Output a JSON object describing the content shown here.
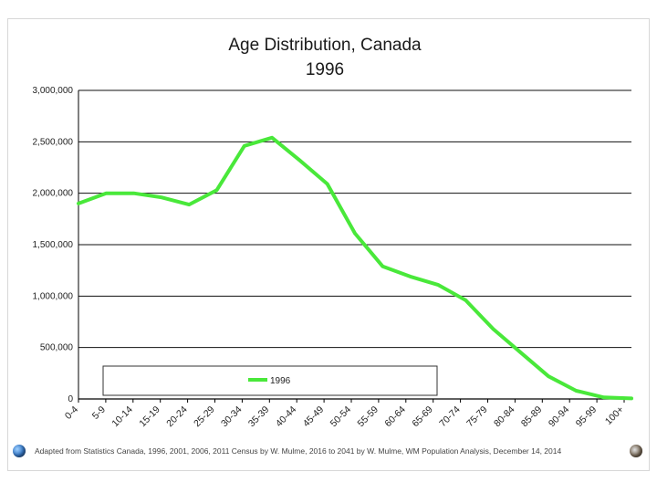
{
  "chart_data": {
    "type": "line",
    "title": [
      "Age Distribution, Canada",
      "1996"
    ],
    "categories": [
      "0-4",
      "5-9",
      "10-14",
      "15-19",
      "20-24",
      "25-29",
      "30-34",
      "35-39",
      "40-44",
      "45-49",
      "50-54",
      "55-59",
      "60-64",
      "65-69",
      "70-74",
      "75-79",
      "80-84",
      "85-89",
      "90-94",
      "95-99",
      "100+"
    ],
    "series": [
      {
        "name": "1996",
        "color": "#49e83a",
        "values": [
          1900000,
          2000000,
          2000000,
          1960000,
          1890000,
          2030000,
          2460000,
          2540000,
          2320000,
          2090000,
          1610000,
          1290000,
          1190000,
          1110000,
          960000,
          680000,
          450000,
          220000,
          80000,
          15000,
          5000
        ]
      }
    ],
    "ylim": [
      0,
      3000000
    ],
    "yticks": [
      0,
      500000,
      1000000,
      1500000,
      2000000,
      2500000,
      3000000
    ],
    "ytick_labels": [
      "0",
      "500,000",
      "1,000,000",
      "1,500,000",
      "2,000,000",
      "2,500,000",
      "3,000,000"
    ],
    "grid": "horizontal",
    "legend": {
      "position": "bottom-center",
      "label": "1996"
    },
    "xlabel": "",
    "ylabel": ""
  },
  "footer": {
    "source_text": "Adapted from Statistics Canada, 1996, 2001, 2006, 2011 Census by W. Mulme, 2016 to 2041 by W. Mulme, WM Population Analysis, December 14, 2014"
  }
}
